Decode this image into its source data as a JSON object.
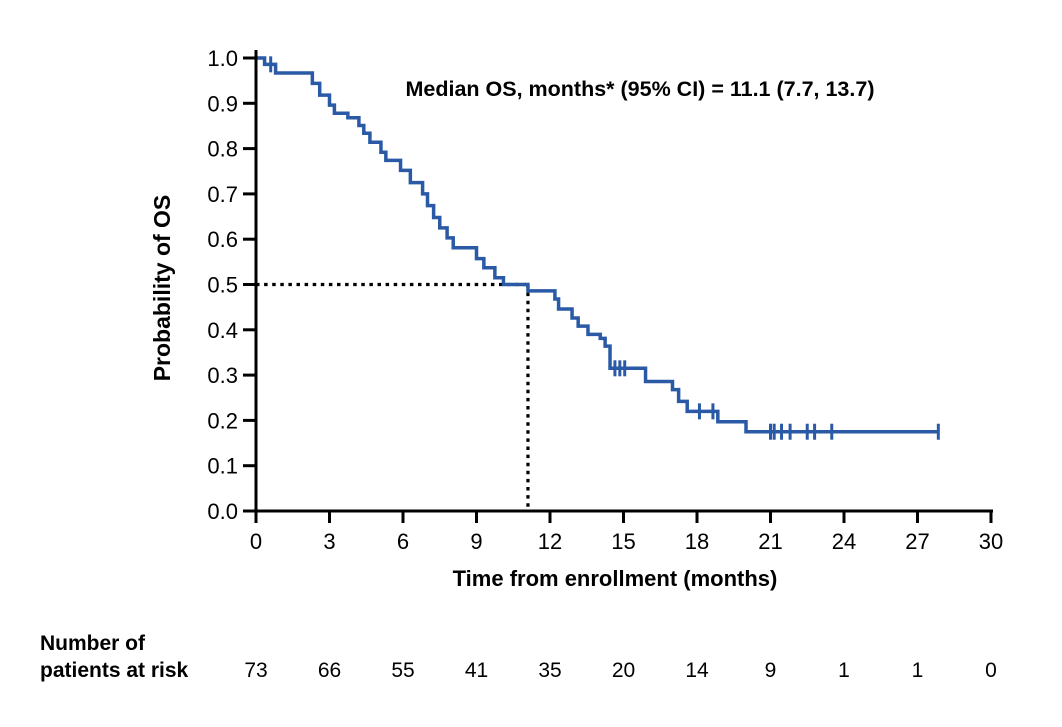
{
  "chart_data": {
    "type": "line",
    "subtype": "kaplan_meier_step",
    "title": "",
    "annotation": "Median OS, months* (95% CI) = 11.1 (7.7, 13.7)",
    "xlabel": "Time from enrollment (months)",
    "ylabel": "Probability of OS",
    "xlim": [
      0,
      30
    ],
    "ylim": [
      0.0,
      1.0
    ],
    "xtick_labels": [
      "0",
      "3",
      "6",
      "9",
      "12",
      "15",
      "18",
      "21",
      "24",
      "27",
      "30"
    ],
    "ytick_labels": [
      "0.0",
      "0.1",
      "0.2",
      "0.3",
      "0.4",
      "0.5",
      "0.6",
      "0.7",
      "0.8",
      "0.9",
      "1.0"
    ],
    "grid": false,
    "legend": "none",
    "median": {
      "value_months": 11.1,
      "ci_lower": 7.7,
      "ci_upper": 13.7,
      "reference_probability": 0.5
    },
    "series": [
      {
        "name": "Overall survival",
        "color": "#2a5aa6",
        "steps": [
          [
            0,
            1.0
          ],
          [
            0.35,
            0.986
          ],
          [
            0.8,
            0.967
          ],
          [
            2.3,
            0.944
          ],
          [
            2.6,
            0.918
          ],
          [
            3.0,
            0.896
          ],
          [
            3.2,
            0.878
          ],
          [
            3.75,
            0.868
          ],
          [
            4.2,
            0.851
          ],
          [
            4.4,
            0.834
          ],
          [
            4.65,
            0.814
          ],
          [
            5.1,
            0.792
          ],
          [
            5.3,
            0.774
          ],
          [
            5.9,
            0.752
          ],
          [
            6.3,
            0.725
          ],
          [
            6.8,
            0.7
          ],
          [
            7.0,
            0.674
          ],
          [
            7.25,
            0.648
          ],
          [
            7.5,
            0.625
          ],
          [
            7.8,
            0.603
          ],
          [
            8.05,
            0.581
          ],
          [
            9.0,
            0.557
          ],
          [
            9.3,
            0.537
          ],
          [
            9.75,
            0.515
          ],
          [
            10.1,
            0.5
          ],
          [
            11.1,
            0.486
          ],
          [
            12.2,
            0.468
          ],
          [
            12.35,
            0.446
          ],
          [
            12.9,
            0.426
          ],
          [
            13.15,
            0.408
          ],
          [
            13.55,
            0.39
          ],
          [
            14.05,
            0.381
          ],
          [
            14.25,
            0.364
          ],
          [
            14.45,
            0.315
          ],
          [
            15.9,
            0.286
          ],
          [
            17.0,
            0.268
          ],
          [
            17.25,
            0.242
          ],
          [
            17.6,
            0.22
          ],
          [
            18.85,
            0.197
          ],
          [
            20.0,
            0.175
          ]
        ],
        "end_time": 27.85,
        "censor_marks": [
          [
            0.6,
            0.986
          ],
          [
            14.65,
            0.315
          ],
          [
            14.85,
            0.315
          ],
          [
            15.05,
            0.315
          ],
          [
            18.1,
            0.22
          ],
          [
            18.65,
            0.22
          ],
          [
            21.0,
            0.175
          ],
          [
            21.15,
            0.175
          ],
          [
            21.45,
            0.175
          ],
          [
            21.8,
            0.175
          ],
          [
            22.5,
            0.175
          ],
          [
            22.8,
            0.175
          ],
          [
            23.5,
            0.175
          ],
          [
            27.85,
            0.175
          ]
        ]
      }
    ]
  },
  "risk_table": {
    "label_line1": "Number of",
    "label_line2": "patients at risk",
    "times": [
      0,
      3,
      6,
      9,
      12,
      15,
      18,
      21,
      24,
      27,
      30
    ],
    "counts": [
      "73",
      "66",
      "55",
      "41",
      "35",
      "20",
      "14",
      "9",
      "1",
      "1",
      "0"
    ]
  },
  "colors": {
    "curve": "#2a5aa6",
    "axis": "#000000",
    "text": "#000000",
    "background": "#ffffff"
  }
}
